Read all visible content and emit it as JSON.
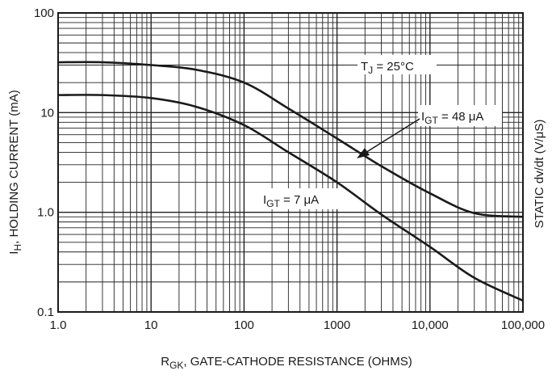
{
  "chart_data": {
    "type": "line",
    "xscale": "log",
    "yscale": "log",
    "xlim": [
      1,
      100000
    ],
    "ylim": [
      0.1,
      100
    ],
    "grid": true,
    "x_tick_labels": [
      "1.0",
      "10",
      "100",
      "1000",
      "10,000",
      "100,000"
    ],
    "y_tick_labels": [
      "0.1",
      "1.0",
      "10",
      "100"
    ],
    "xlabel": {
      "main": "R",
      "sub": "GK",
      "rest": ", GATE-CATHODE RESISTANCE (OHMS)"
    },
    "ylabel": {
      "main": "I",
      "sub": "H",
      "rest": ", HOLDING CURRENT (mA)"
    },
    "y2label": "STATIC dv/dt (V/μS)",
    "annotations": {
      "temperature": {
        "main": "T",
        "sub": "J",
        "rest": " = 25°C"
      },
      "igt48": {
        "main": "I",
        "sub": "GT",
        "rest": " = 48 μA"
      },
      "igt7": {
        "main": "I",
        "sub": "GT",
        "rest": " = 7 μA"
      }
    },
    "series": [
      {
        "id": "igt48",
        "x": [
          1,
          3,
          10,
          30,
          100,
          300,
          1000,
          3000,
          10000,
          30000,
          100000
        ],
        "y": [
          32,
          32,
          30,
          27,
          20,
          11,
          5.5,
          2.9,
          1.55,
          0.98,
          0.9
        ]
      },
      {
        "id": "igt7",
        "x": [
          1,
          3,
          10,
          30,
          100,
          300,
          1000,
          3000,
          10000,
          30000,
          100000
        ],
        "y": [
          15,
          15,
          14,
          11.5,
          7.5,
          4,
          2,
          0.95,
          0.45,
          0.22,
          0.13
        ]
      }
    ]
  }
}
